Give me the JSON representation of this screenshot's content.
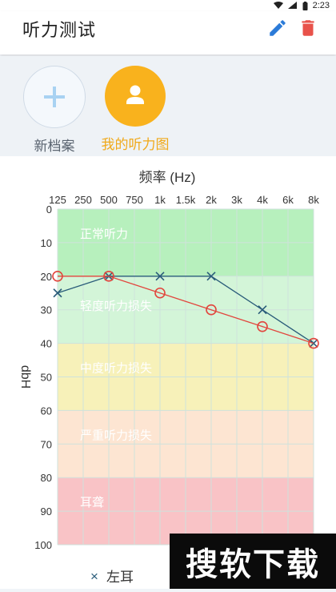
{
  "status": {
    "time": "2:23"
  },
  "app": {
    "title": "听力测试"
  },
  "profiles": [
    {
      "label": "新档案",
      "icon": "plus-icon",
      "color": "#5a6470"
    },
    {
      "label": "我的听力图",
      "icon": "person-icon",
      "color": "#f0a91a"
    }
  ],
  "colors": {
    "accent_blue": "#2b7bd8",
    "delete_red": "#e8524a",
    "profile_orange": "#f9b21d"
  },
  "chart_data": {
    "type": "line",
    "title": "频率 (Hz)",
    "xlabel": "频率 (Hz)",
    "ylabel": "dbH",
    "x_ticks": [
      "125",
      "250",
      "500",
      "750",
      "1k",
      "1.5k",
      "2k",
      "3k",
      "4k",
      "6k",
      "8k"
    ],
    "y_ticks": [
      "0",
      "10",
      "20",
      "30",
      "40",
      "50",
      "60",
      "70",
      "80",
      "90",
      "100"
    ],
    "ylim": [
      0,
      100
    ],
    "y_inverted": true,
    "grid": true,
    "bands": [
      {
        "label": "正常听力",
        "from": 0,
        "to": 20,
        "color": "#b7f0bd"
      },
      {
        "label": "轻度听力损失",
        "from": 20,
        "to": 40,
        "color": "#d3f5d8"
      },
      {
        "label": "中度听力损失",
        "from": 40,
        "to": 60,
        "color": "#f7f1b9"
      },
      {
        "label": "严重听力损失",
        "from": 60,
        "to": 80,
        "color": "#fde5d2"
      },
      {
        "label": "耳聋",
        "from": 80,
        "to": 100,
        "color": "#f9c3c6"
      }
    ],
    "series": [
      {
        "name": "左耳",
        "marker": "x",
        "color": "#2a5c7a",
        "points": [
          [
            "125",
            25
          ],
          [
            "500",
            20
          ],
          [
            "1k",
            20
          ],
          [
            "2k",
            20
          ],
          [
            "4k",
            30
          ],
          [
            "8k",
            40
          ]
        ]
      },
      {
        "name": "",
        "marker": "o",
        "color": "#e2453d",
        "points": [
          [
            "125",
            20
          ],
          [
            "500",
            20
          ],
          [
            "1k",
            25
          ],
          [
            "2k",
            30
          ],
          [
            "4k",
            35
          ],
          [
            "8k",
            40
          ]
        ]
      }
    ],
    "legend_position": "bottom"
  },
  "watermark": {
    "text": "搜软下载"
  }
}
